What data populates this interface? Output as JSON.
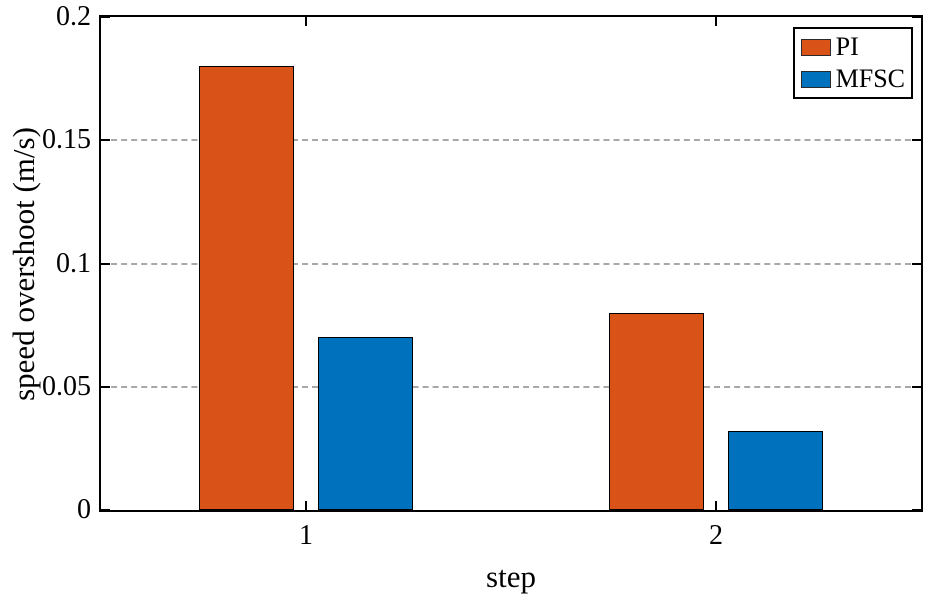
{
  "chart_data": {
    "type": "bar",
    "xlabel": "step",
    "ylabel": "speed overshoot (m/s)",
    "categories": [
      "1",
      "2"
    ],
    "series": [
      {
        "name": "PI",
        "color": "#d95319",
        "values": [
          0.18,
          0.08
        ]
      },
      {
        "name": "MFSC",
        "color": "#0072bd",
        "values": [
          0.07,
          0.032
        ]
      }
    ],
    "ylim": [
      0,
      0.2
    ],
    "yticks": [
      0,
      0.05,
      0.1,
      0.15,
      0.2
    ],
    "ytick_labels": [
      "0",
      "0.05",
      "0.1",
      "0.15",
      "0.2"
    ],
    "grid": "horizontal-dashed",
    "legend_position": "top-right",
    "colors": {
      "grid": "#a8a8a8",
      "axis": "#000000",
      "background": "#ffffff",
      "text": "#000000"
    }
  }
}
